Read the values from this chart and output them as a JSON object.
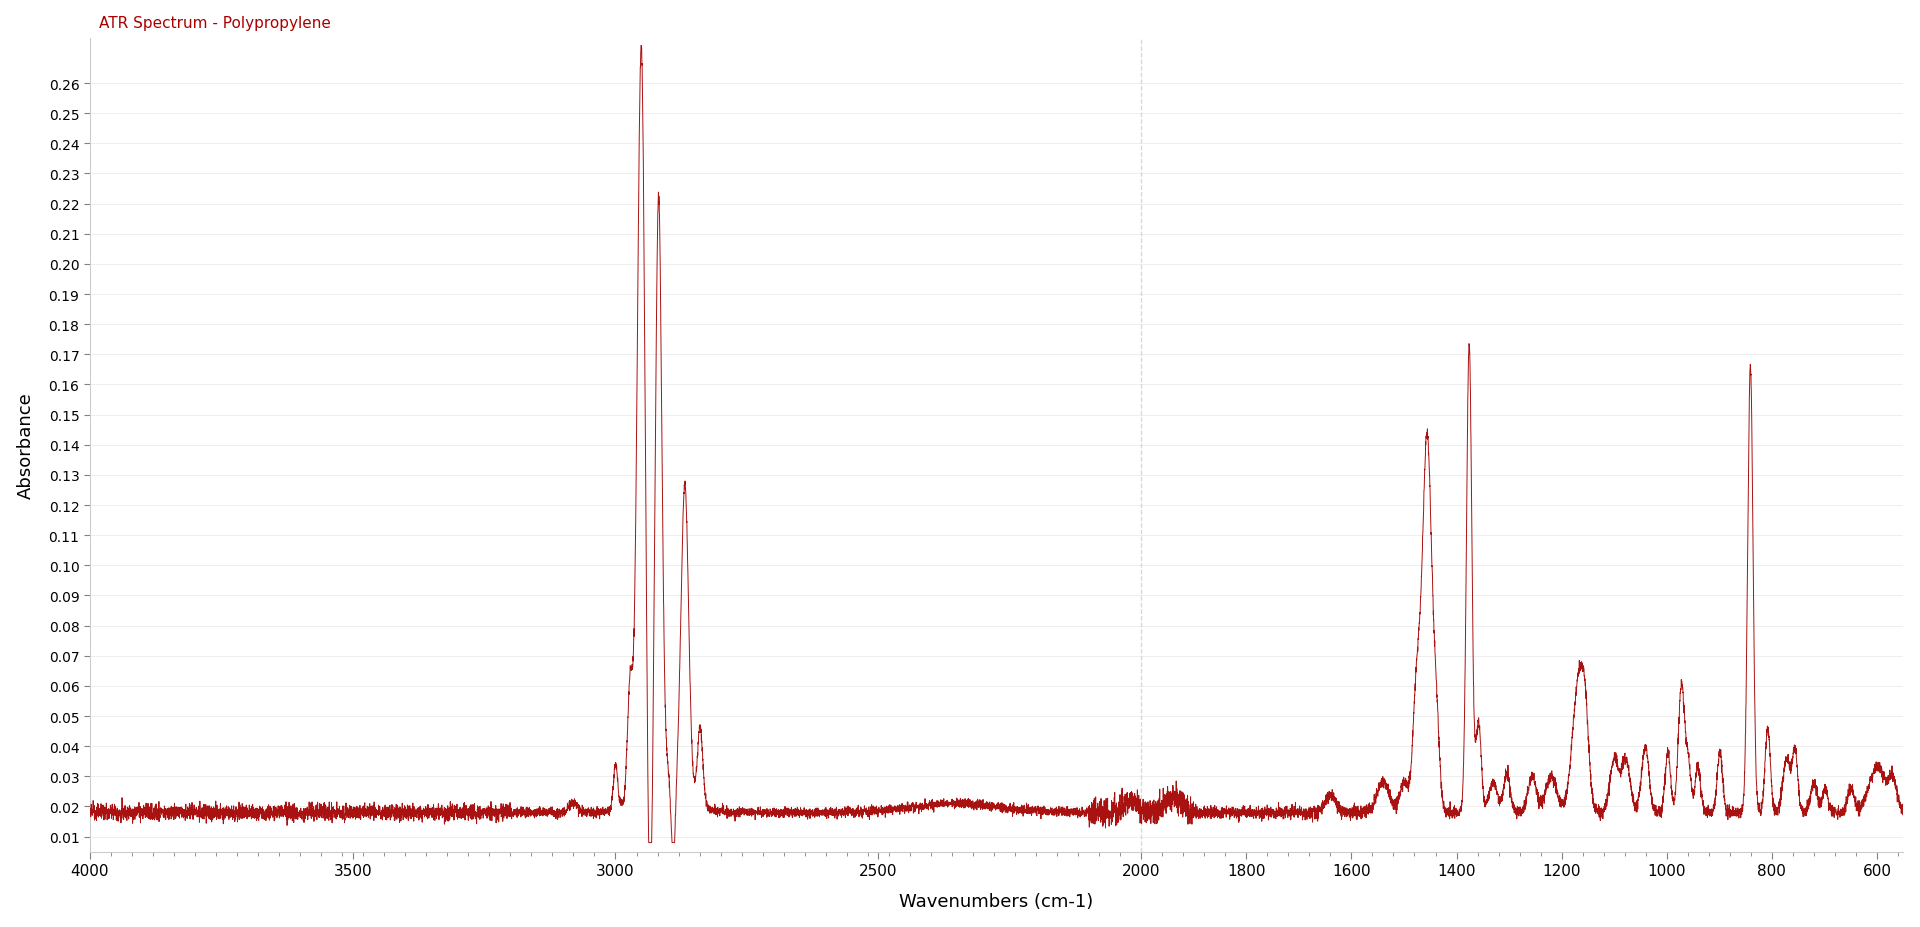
{
  "title": "ATR Spectrum - Polypropylene",
  "title_color": "#aa0000",
  "xlabel": "Wavenumbers (cm-1)",
  "ylabel": "Absorbance",
  "line_color": "#aa1111",
  "background_color": "#ffffff",
  "xmin": 4000,
  "xmax": 550,
  "ymin": 0.005,
  "ymax": 0.275,
  "dashed_line_x": 2000,
  "yticks": [
    0.01,
    0.02,
    0.03,
    0.04,
    0.05,
    0.06,
    0.07,
    0.08,
    0.09,
    0.1,
    0.11,
    0.12,
    0.13,
    0.14,
    0.15,
    0.16,
    0.17,
    0.18,
    0.19,
    0.2,
    0.21,
    0.22,
    0.23,
    0.24,
    0.25,
    0.26
  ],
  "xticks": [
    4000,
    3500,
    3000,
    2500,
    2000,
    1800,
    1600,
    1400,
    1200,
    1000,
    800,
    600
  ]
}
